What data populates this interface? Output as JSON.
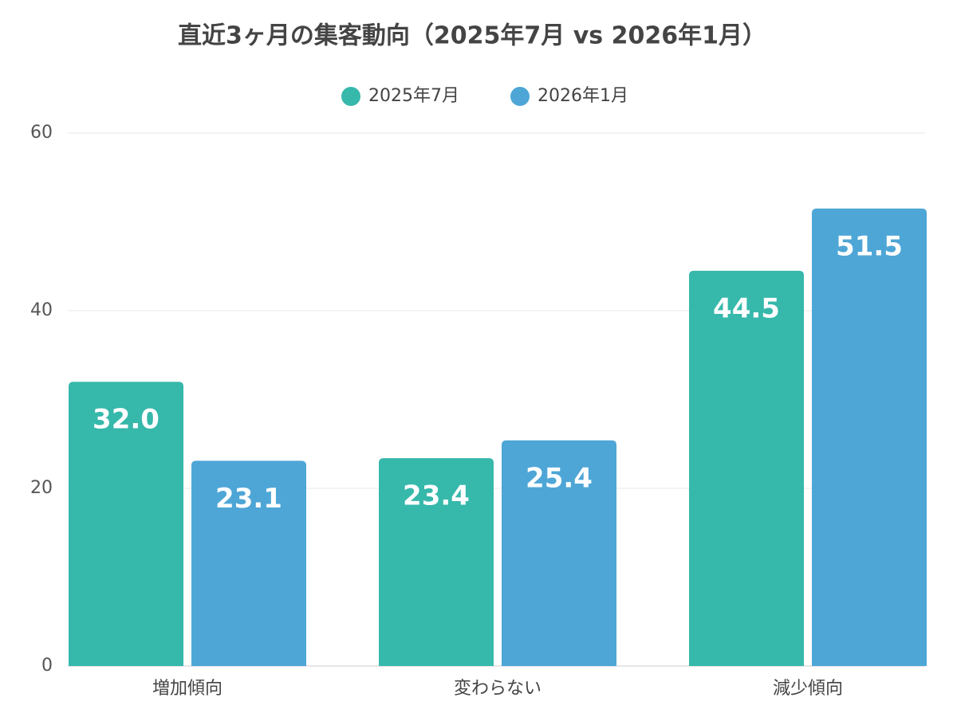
{
  "chart_data": {
    "type": "bar",
    "title": "直近3ヶ月の集客動向（2025年7月 vs 2026年1月）",
    "categories": [
      "増加傾向",
      "変わらない",
      "減少傾向"
    ],
    "series": [
      {
        "name": "2025年7月",
        "color": "#36b8ab",
        "values": [
          32.0,
          23.4,
          44.5
        ],
        "value_labels": [
          "32.0",
          "23.4",
          "44.5"
        ]
      },
      {
        "name": "2026年1月",
        "color": "#4ea6d6",
        "values": [
          23.1,
          25.4,
          51.5
        ],
        "value_labels": [
          "23.1",
          "25.4",
          "51.5"
        ]
      }
    ],
    "ylim": [
      0,
      60
    ],
    "yticks": [
      0,
      20,
      40,
      60
    ],
    "grid": true,
    "legend": "top"
  }
}
